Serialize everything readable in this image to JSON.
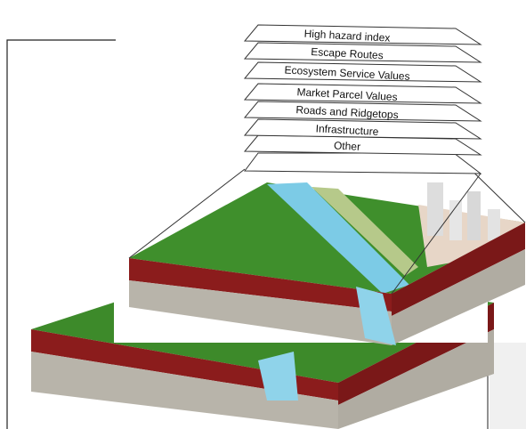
{
  "layers": [
    {
      "label": "High hazard index"
    },
    {
      "label": "Escape Routes"
    },
    {
      "label": "Ecosystem Service Values"
    },
    {
      "label": "Market Parcel Values"
    },
    {
      "label": "Roads and Ridgetops"
    },
    {
      "label": "Infrastructure"
    },
    {
      "label": "Other"
    }
  ]
}
